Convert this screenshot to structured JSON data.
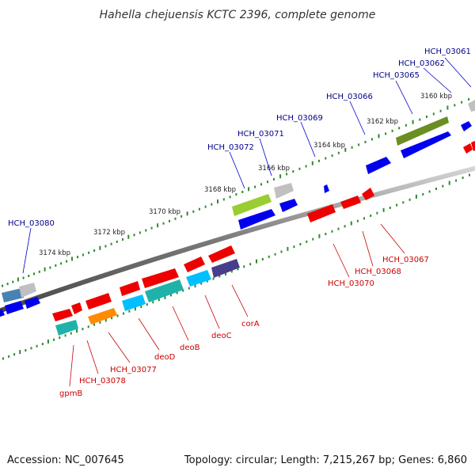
{
  "title": "Hahella chejuensis KCTC 2396, complete genome",
  "footer": {
    "accession": "Accession: NC_007645",
    "stats": "Topology: circular; Length: 7,215,267 bp; Genes: 6,860"
  },
  "colors": {
    "backbone": "#8a8a8a",
    "tick": "#2e8b2e",
    "label_top_strand": "#00008b",
    "label_bottom_strand": "#cc0000"
  },
  "scale_labels": [
    "3160 kbp",
    "3162 kbp",
    "3164 kbp",
    "3166 kbp",
    "3168 kbp",
    "3170 kbp",
    "3172 kbp",
    "3174 kbp"
  ],
  "genes_top": [
    {
      "label": "HCH_03061",
      "color": "#c0c0c0"
    },
    {
      "label": "HCH_03062",
      "color": "#0000ee"
    },
    {
      "label": "HCH_03065",
      "color": "#0000ee"
    },
    {
      "label": "HCH_03066",
      "color": "#6b8e23"
    },
    {
      "label": "HCH_03069",
      "color": "#0000ee"
    },
    {
      "label": "HCH_03071",
      "color": "#c0c0c0"
    },
    {
      "label": "HCH_03072",
      "color": "#9acd32"
    },
    {
      "label": "HCH_03080",
      "color": "#4682b4"
    }
  ],
  "genes_bottom": [
    {
      "label": "HCH_03067",
      "color": "#ee0000"
    },
    {
      "label": "HCH_03068",
      "color": "#ee0000"
    },
    {
      "label": "HCH_03070",
      "color": "#ee0000"
    },
    {
      "label": "corA",
      "color": "#483d8b"
    },
    {
      "label": "deoC",
      "color": "#ee0000"
    },
    {
      "label": "deoB",
      "color": "#ee0000"
    },
    {
      "label": "deoD",
      "color": "#ee0000"
    },
    {
      "label": "HCH_03077",
      "color": "#ee0000"
    },
    {
      "label": "HCH_03078",
      "color": "#ff8c00"
    },
    {
      "label": "gpmB",
      "color": "#20b2aa"
    }
  ]
}
